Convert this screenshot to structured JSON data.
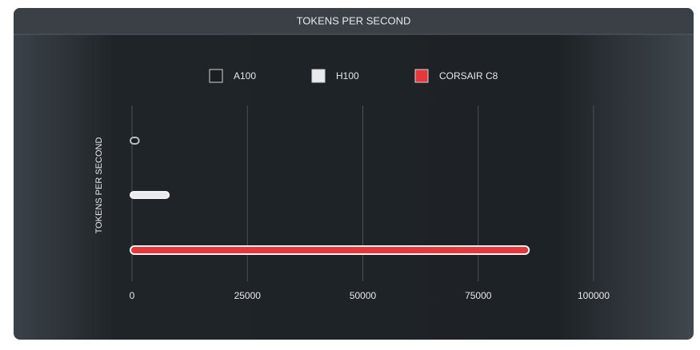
{
  "chart_data": {
    "type": "bar",
    "orientation": "horizontal",
    "title": "TOKENS PER SECOND",
    "y_label": "TOKENS PER SECOND",
    "categories": [
      null
    ],
    "series": [
      {
        "name": "A100",
        "color": "#1c1f22",
        "values": [
          1500
        ]
      },
      {
        "name": "H100",
        "color": "#e8eaec",
        "values": [
          8000
        ]
      },
      {
        "name": "CORSAIR C8",
        "color": "#e5383b",
        "values": [
          86000
        ]
      }
    ],
    "xlim": [
      0,
      100000
    ],
    "xticks": [
      0,
      25000,
      50000,
      75000,
      100000
    ],
    "grid": true,
    "legend": "top"
  }
}
